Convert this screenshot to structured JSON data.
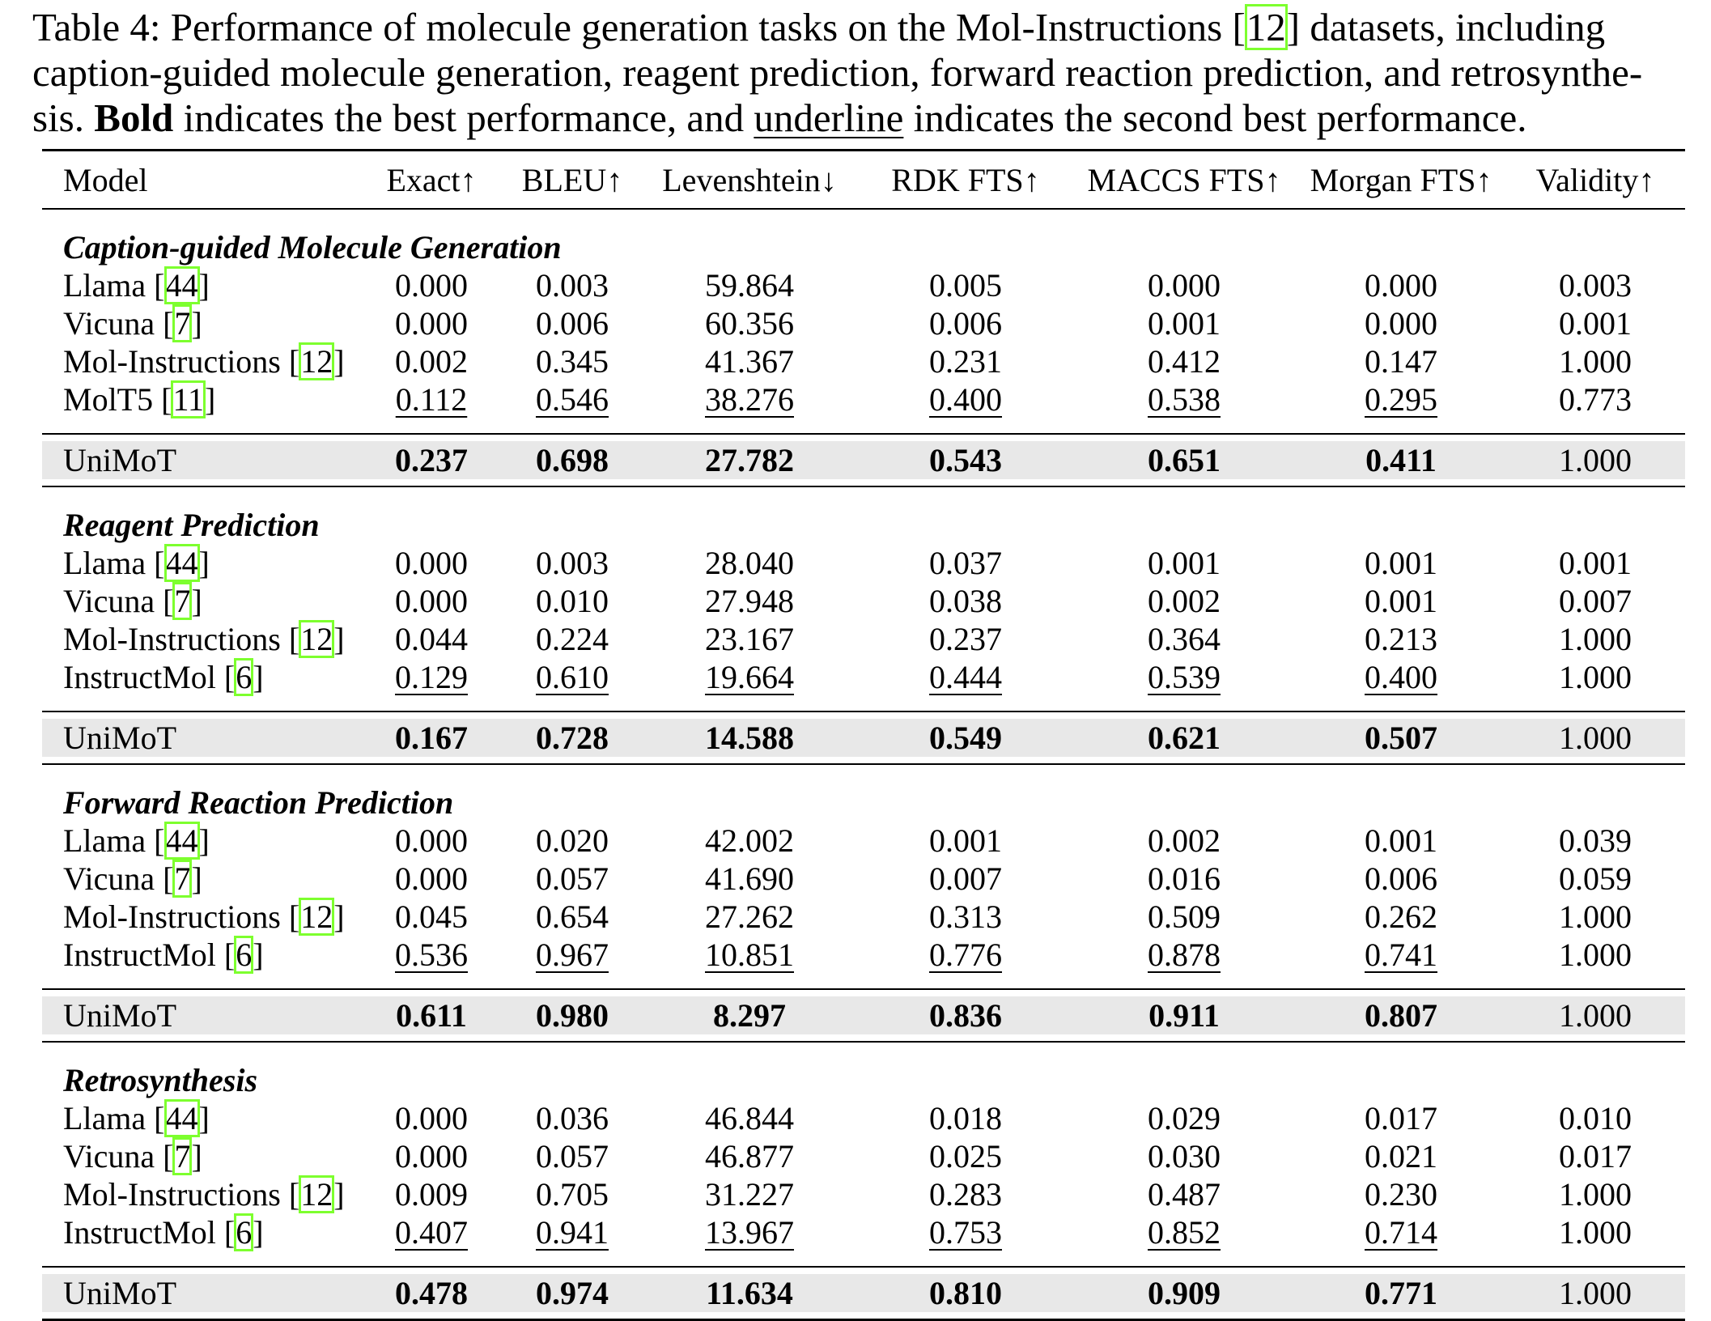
{
  "caption": {
    "lead": "Table 4: Performance of molecule generation tasks on the Mol-Instructions [",
    "cite": "12",
    "mid": "] datasets, including caption-guided molecule generation, reagent prediction, forward reaction prediction, and retrosynthe-sis. ",
    "bold_word": "Bold",
    "mid2": " indicates the best performance, and ",
    "underline_word": "underline",
    "tail": " indicates the second best performance."
  },
  "columns": [
    "Model",
    "Exact↑",
    "BLEU↑",
    "Levenshtein↓",
    "RDK FTS↑",
    "MACCS FTS↑",
    "Morgan FTS↑",
    "Validity↑"
  ],
  "sections": [
    {
      "title": "Caption-guided Molecule Generation",
      "rows": [
        {
          "name": "Llama",
          "cite": "44",
          "values": [
            "0.000",
            "0.003",
            "59.864",
            "0.005",
            "0.000",
            "0.000",
            "0.003"
          ]
        },
        {
          "name": "Vicuna",
          "cite": "7",
          "values": [
            "0.000",
            "0.006",
            "60.356",
            "0.006",
            "0.001",
            "0.000",
            "0.001"
          ]
        },
        {
          "name": "Mol-Instructions",
          "cite": "12",
          "values": [
            "0.002",
            "0.345",
            "41.367",
            "0.231",
            "0.412",
            "0.147",
            "1.000"
          ]
        },
        {
          "name": "MolT5",
          "cite": "11",
          "values": [
            "0.112",
            "0.546",
            "38.276",
            "0.400",
            "0.538",
            "0.295",
            "0.773"
          ]
        }
      ],
      "unimot": {
        "name": "UniMoT",
        "values": [
          "0.237",
          "0.698",
          "27.782",
          "0.543",
          "0.651",
          "0.411",
          "1.000"
        ]
      }
    },
    {
      "title": "Reagent Prediction",
      "rows": [
        {
          "name": "Llama",
          "cite": "44",
          "values": [
            "0.000",
            "0.003",
            "28.040",
            "0.037",
            "0.001",
            "0.001",
            "0.001"
          ]
        },
        {
          "name": "Vicuna",
          "cite": "7",
          "values": [
            "0.000",
            "0.010",
            "27.948",
            "0.038",
            "0.002",
            "0.001",
            "0.007"
          ]
        },
        {
          "name": "Mol-Instructions",
          "cite": "12",
          "values": [
            "0.044",
            "0.224",
            "23.167",
            "0.237",
            "0.364",
            "0.213",
            "1.000"
          ]
        },
        {
          "name": "InstructMol",
          "cite": "6",
          "values": [
            "0.129",
            "0.610",
            "19.664",
            "0.444",
            "0.539",
            "0.400",
            "1.000"
          ]
        }
      ],
      "unimot": {
        "name": "UniMoT",
        "values": [
          "0.167",
          "0.728",
          "14.588",
          "0.549",
          "0.621",
          "0.507",
          "1.000"
        ]
      }
    },
    {
      "title": "Forward Reaction Prediction",
      "rows": [
        {
          "name": "Llama",
          "cite": "44",
          "values": [
            "0.000",
            "0.020",
            "42.002",
            "0.001",
            "0.002",
            "0.001",
            "0.039"
          ]
        },
        {
          "name": "Vicuna",
          "cite": "7",
          "values": [
            "0.000",
            "0.057",
            "41.690",
            "0.007",
            "0.016",
            "0.006",
            "0.059"
          ]
        },
        {
          "name": "Mol-Instructions",
          "cite": "12",
          "values": [
            "0.045",
            "0.654",
            "27.262",
            "0.313",
            "0.509",
            "0.262",
            "1.000"
          ]
        },
        {
          "name": "InstructMol",
          "cite": "6",
          "values": [
            "0.536",
            "0.967",
            "10.851",
            "0.776",
            "0.878",
            "0.741",
            "1.000"
          ]
        }
      ],
      "unimot": {
        "name": "UniMoT",
        "values": [
          "0.611",
          "0.980",
          "8.297",
          "0.836",
          "0.911",
          "0.807",
          "1.000"
        ]
      }
    },
    {
      "title": "Retrosynthesis",
      "rows": [
        {
          "name": "Llama",
          "cite": "44",
          "values": [
            "0.000",
            "0.036",
            "46.844",
            "0.018",
            "0.029",
            "0.017",
            "0.010"
          ]
        },
        {
          "name": "Vicuna",
          "cite": "7",
          "values": [
            "0.000",
            "0.057",
            "46.877",
            "0.025",
            "0.030",
            "0.021",
            "0.017"
          ]
        },
        {
          "name": "Mol-Instructions",
          "cite": "12",
          "values": [
            "0.009",
            "0.705",
            "31.227",
            "0.283",
            "0.487",
            "0.230",
            "1.000"
          ]
        },
        {
          "name": "InstructMol",
          "cite": "6",
          "values": [
            "0.407",
            "0.941",
            "13.967",
            "0.753",
            "0.852",
            "0.714",
            "1.000"
          ]
        }
      ],
      "unimot": {
        "name": "UniMoT",
        "values": [
          "0.478",
          "0.974",
          "11.634",
          "0.810",
          "0.909",
          "0.771",
          "1.000"
        ]
      }
    }
  ]
}
